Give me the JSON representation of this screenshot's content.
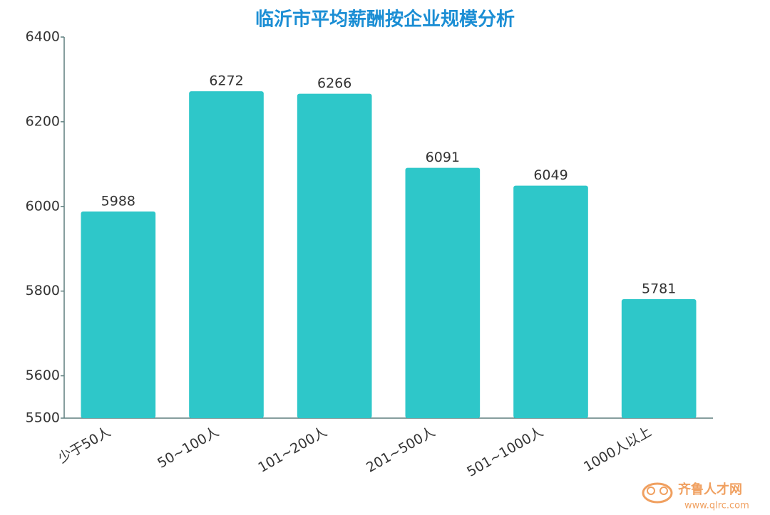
{
  "chart_data": {
    "type": "bar",
    "title": "临沂市平均薪酬按企业规模分析",
    "categories": [
      "少于50人",
      "50~100人",
      "101~200人",
      "201~500人",
      "501~1000人",
      "1000人以上"
    ],
    "values": [
      5988,
      6272,
      6266,
      6091,
      6049,
      5781
    ],
    "color": "#2ec7c9",
    "ylim": [
      5500,
      6400
    ],
    "yticks": [
      5500,
      5600,
      5800,
      6000,
      6200,
      6400
    ],
    "grid": false
  },
  "watermark": {
    "name": "齐鲁人才网",
    "url": "www.qlrc.com"
  }
}
